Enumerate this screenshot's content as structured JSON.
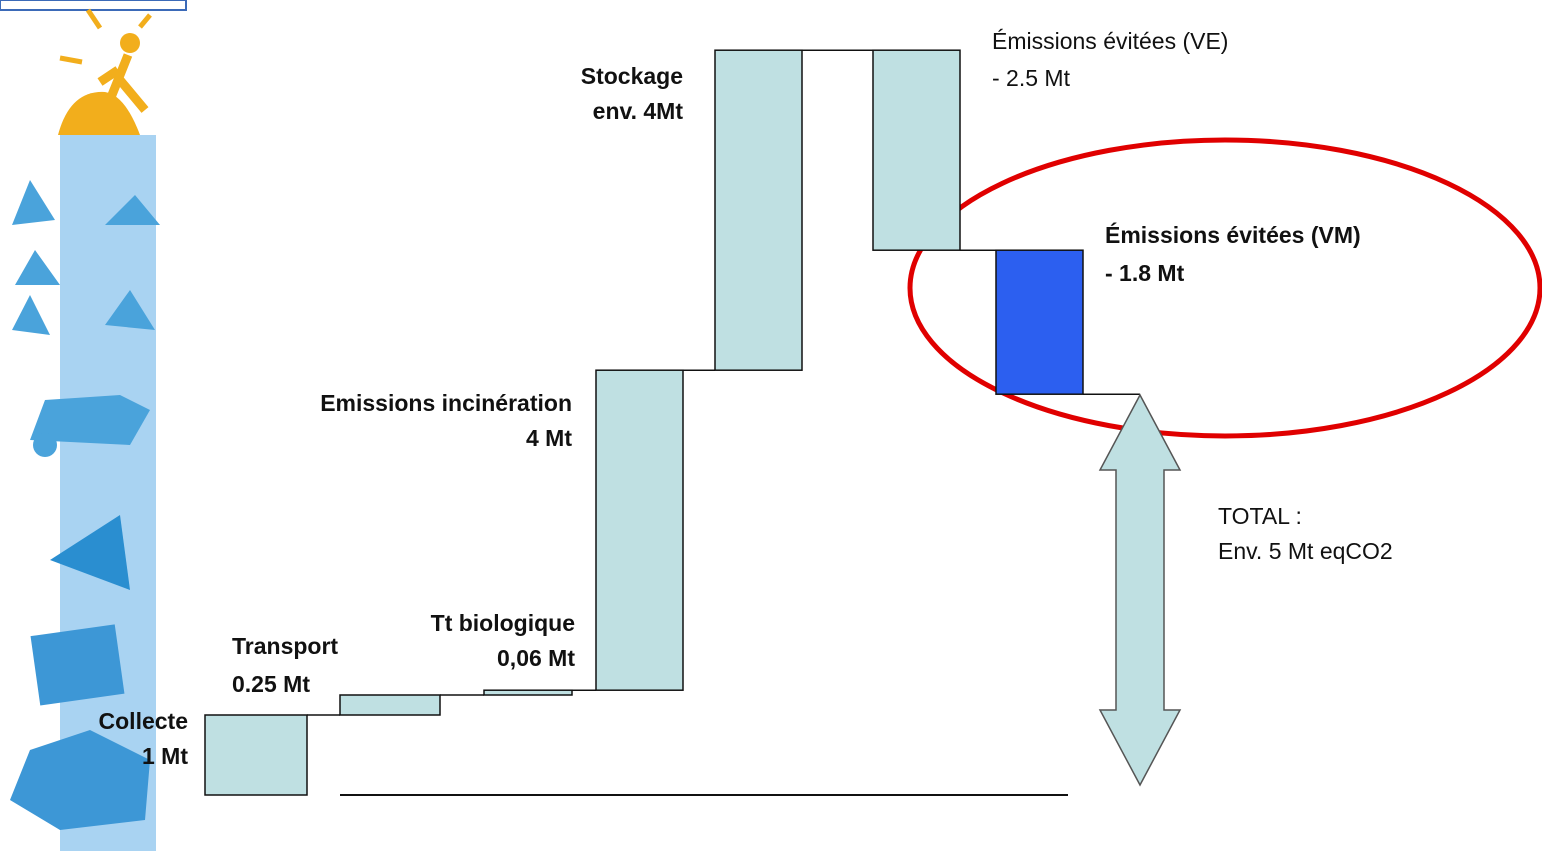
{
  "chart_data": {
    "type": "waterfall",
    "categories": [
      "Collecte",
      "Transport",
      "Tt biologique",
      "Emissions incinération",
      "Stockage",
      "Émissions évitées (VE)",
      "Émissions évitées (VM)"
    ],
    "values": [
      1,
      0.25,
      0.06,
      4,
      4,
      -2.5,
      -1.8
    ],
    "value_labels": [
      "1 Mt",
      "0.25 Mt",
      "0,06 Mt",
      "4 Mt",
      "env. 4Mt",
      "- 2.5 Mt",
      "- 1.8 Mt"
    ],
    "colors": [
      "#bfe0e2",
      "#bfe0e2",
      "#bfe0e2",
      "#bfe0e2",
      "#bfe0e2",
      "#bfe0e2",
      "#2c5ff0"
    ],
    "label_colors": [
      "#111111",
      "#111111",
      "#111111",
      "#111111",
      "#111111",
      "#111111",
      "#3b4fe0"
    ],
    "total": {
      "label": "TOTAL :",
      "value": 5,
      "value_label": "Env. 5 Mt eqCO2",
      "color": "#bfe0e2"
    },
    "highlight_color": "#e00000"
  }
}
